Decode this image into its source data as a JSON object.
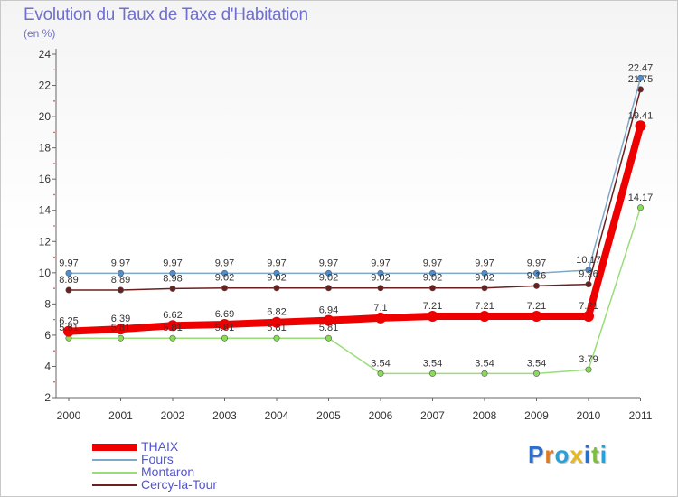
{
  "chart_data": {
    "type": "line",
    "title": "Evolution du Taux de Taxe d'Habitation",
    "ylabel": "(en %)",
    "xlabel": "",
    "categories": [
      "2000",
      "2001",
      "2002",
      "2003",
      "2004",
      "2005",
      "2006",
      "2007",
      "2008",
      "2009",
      "2010",
      "2011"
    ],
    "ylim": [
      2,
      24
    ],
    "yticks": [
      2,
      4,
      6,
      8,
      10,
      12,
      14,
      16,
      18,
      20,
      22,
      24
    ],
    "grid": false,
    "legend_position": "bottom-left",
    "series": [
      {
        "name": "Cercy-la-Tour",
        "color": "#6b1f1f",
        "values": [
          8.89,
          8.89,
          8.98,
          9.02,
          9.02,
          9.02,
          9.02,
          9.02,
          9.02,
          9.16,
          9.26,
          21.75
        ],
        "labels": [
          "8.89",
          "8.89",
          "8.98",
          "9.02",
          "9.02",
          "9.02",
          "9.02",
          "9.02",
          "9.02",
          "9.16",
          "9.26",
          "21.75"
        ]
      },
      {
        "name": "Montaron",
        "color": "#99dd77",
        "values": [
          5.81,
          5.81,
          5.81,
          5.81,
          5.81,
          5.81,
          3.54,
          3.54,
          3.54,
          3.54,
          3.79,
          14.17
        ],
        "labels": [
          "5.81",
          "5.81",
          "5.81",
          "5.81",
          "5.81",
          "5.81",
          "3.54",
          "3.54",
          "3.54",
          "3.54",
          "3.79",
          "14.17"
        ]
      },
      {
        "name": "Fours",
        "color": "#7fa8c8",
        "values": [
          9.97,
          9.97,
          9.97,
          9.97,
          9.97,
          9.97,
          9.97,
          9.97,
          9.97,
          9.97,
          10.17,
          22.47
        ],
        "labels": [
          "9.97",
          "9.97",
          "9.97",
          "9.97",
          "9.97",
          "9.97",
          "9.97",
          "9.97",
          "9.97",
          "9.97",
          "10.17",
          "22.47"
        ]
      },
      {
        "name": "THAIX",
        "color": "#ee0000",
        "values": [
          6.25,
          6.39,
          6.62,
          6.69,
          6.82,
          6.94,
          7.1,
          7.21,
          7.21,
          7.21,
          7.21,
          19.41
        ],
        "labels": [
          "6.25",
          "6.39",
          "6.62",
          "6.69",
          "6.82",
          "6.94",
          "7.1",
          "7.21",
          "7.21",
          "7.21",
          "7.21",
          "19.41"
        ]
      }
    ]
  },
  "legend": {
    "items": [
      {
        "label": "THAIX",
        "color": "#ee0000"
      },
      {
        "label": "Fours",
        "color": "#7fa8c8"
      },
      {
        "label": "Montaron",
        "color": "#99dd77"
      },
      {
        "label": "Cercy-la-Tour",
        "color": "#6b1f1f"
      }
    ]
  },
  "logo": {
    "letters": [
      "P",
      "r",
      "o",
      "x",
      "i",
      "t",
      "i"
    ],
    "colors": [
      "#2a6fc9",
      "#e07a1f",
      "#2aa0d8",
      "#e8b81f",
      "#2a6fc9",
      "#7cbf3a",
      "#2aa0d8"
    ]
  }
}
